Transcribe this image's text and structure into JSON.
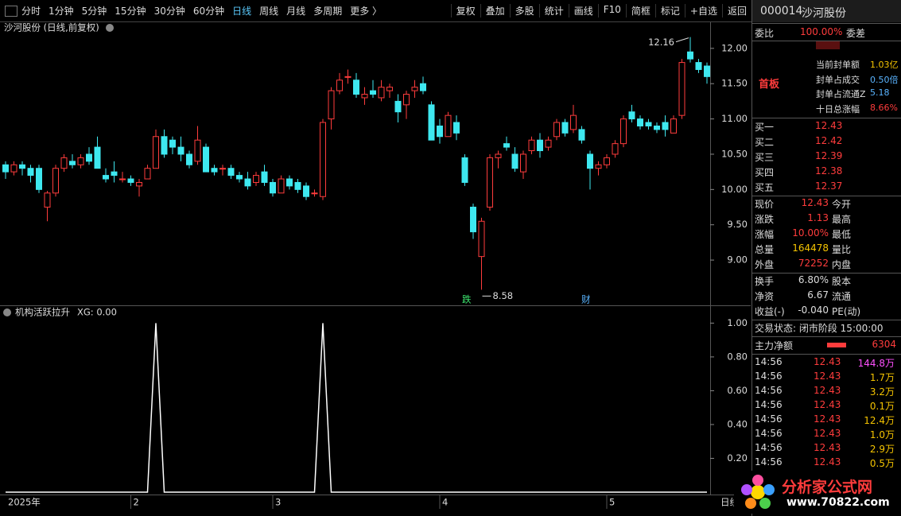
{
  "toolbar": {
    "left": [
      "分时",
      "1分钟",
      "5分钟",
      "15分钟",
      "30分钟",
      "60分钟",
      "日线",
      "周线",
      "月线",
      "多周期",
      "更多 〉"
    ],
    "active": 6,
    "right": [
      "复权",
      "叠加",
      "多股",
      "统计",
      "画线",
      "F10",
      "简框",
      "标记",
      "+自选",
      "返回"
    ]
  },
  "chart_data": [
    {
      "type": "candlestick",
      "title": "沙河股份 (日线,前复权)",
      "up_color": "#ff3c3c",
      "down_color": "#3ee8f0",
      "max_label": "12.16",
      "min_label": "8.58",
      "events": [
        "跌",
        "财"
      ],
      "categories": [
        "2025年",
        null,
        null,
        null,
        null,
        null,
        null,
        null,
        null,
        null,
        null,
        null,
        null,
        null,
        null,
        "2",
        null,
        null,
        null,
        null,
        null,
        null,
        null,
        null,
        null,
        null,
        null,
        null,
        null,
        null,
        null,
        null,
        "3",
        null,
        null,
        null,
        null,
        null,
        null,
        null,
        null,
        null,
        null,
        null,
        null,
        null,
        null,
        null,
        null,
        null,
        null,
        null,
        "4",
        null,
        null,
        null,
        null,
        null,
        null,
        null,
        null,
        null,
        null,
        null,
        null,
        null,
        null,
        null,
        null,
        null,
        null,
        null,
        "5",
        null,
        null,
        null,
        null,
        null,
        null,
        null,
        null,
        null,
        null,
        null,
        null
      ],
      "ohlc": [
        [
          10.35,
          10.4,
          10.15,
          10.25
        ],
        [
          10.25,
          10.4,
          10.2,
          10.35
        ],
        [
          10.35,
          10.4,
          10.2,
          10.3
        ],
        [
          10.3,
          10.35,
          10.1,
          10.2
        ],
        [
          10.3,
          10.35,
          9.95,
          10.0
        ],
        [
          9.75,
          9.98,
          9.55,
          9.95
        ],
        [
          9.95,
          10.35,
          9.9,
          10.3
        ],
        [
          10.3,
          10.5,
          10.25,
          10.45
        ],
        [
          10.4,
          10.5,
          10.3,
          10.35
        ],
        [
          10.35,
          10.5,
          10.3,
          10.45
        ],
        [
          10.5,
          10.6,
          10.35,
          10.4
        ],
        [
          10.6,
          10.75,
          10.3,
          10.3
        ],
        [
          10.2,
          10.3,
          10.1,
          10.15
        ],
        [
          10.25,
          10.4,
          10.1,
          10.2
        ],
        [
          10.15,
          10.25,
          10.1,
          10.15
        ],
        [
          10.15,
          10.2,
          10.05,
          10.1
        ],
        [
          10.05,
          10.15,
          9.9,
          10.1
        ],
        [
          10.15,
          10.35,
          10.15,
          10.3
        ],
        [
          10.3,
          10.85,
          10.3,
          10.75
        ],
        [
          10.75,
          10.85,
          10.45,
          10.5
        ],
        [
          10.7,
          10.75,
          10.5,
          10.6
        ],
        [
          10.6,
          10.75,
          10.4,
          10.5
        ],
        [
          10.5,
          10.55,
          10.3,
          10.35
        ],
        [
          10.4,
          10.9,
          10.35,
          10.7
        ],
        [
          10.6,
          10.65,
          10.25,
          10.25
        ],
        [
          10.3,
          10.35,
          10.2,
          10.25
        ],
        [
          10.3,
          10.35,
          10.2,
          10.3
        ],
        [
          10.3,
          10.35,
          10.15,
          10.2
        ],
        [
          10.2,
          10.25,
          10.1,
          10.15
        ],
        [
          10.15,
          10.25,
          10.0,
          10.05
        ],
        [
          10.1,
          10.25,
          10.05,
          10.2
        ],
        [
          10.25,
          10.35,
          10.05,
          10.1
        ],
        [
          10.1,
          10.15,
          9.9,
          9.95
        ],
        [
          9.95,
          10.2,
          9.95,
          10.15
        ],
        [
          10.15,
          10.2,
          10.0,
          10.05
        ],
        [
          10.1,
          10.15,
          9.95,
          10.0
        ],
        [
          10.05,
          10.1,
          9.85,
          9.9
        ],
        [
          9.95,
          10.0,
          9.9,
          9.95
        ],
        [
          9.9,
          11.0,
          9.85,
          10.95
        ],
        [
          11.0,
          11.45,
          10.85,
          11.4
        ],
        [
          11.4,
          11.65,
          11.35,
          11.55
        ],
        [
          11.6,
          11.7,
          11.5,
          11.6
        ],
        [
          11.55,
          11.65,
          11.3,
          11.35
        ],
        [
          11.3,
          11.45,
          11.2,
          11.35
        ],
        [
          11.4,
          11.55,
          11.3,
          11.35
        ],
        [
          11.3,
          11.55,
          11.25,
          11.45
        ],
        [
          11.4,
          11.5,
          11.3,
          11.45
        ],
        [
          11.25,
          11.35,
          10.95,
          11.1
        ],
        [
          11.2,
          11.4,
          11.0,
          11.35
        ],
        [
          11.4,
          11.55,
          11.3,
          11.45
        ],
        [
          11.5,
          11.6,
          11.35,
          11.4
        ],
        [
          11.2,
          11.25,
          10.7,
          10.7
        ],
        [
          10.9,
          11.0,
          10.65,
          10.75
        ],
        [
          10.75,
          11.1,
          10.75,
          11.05
        ],
        [
          10.95,
          11.05,
          10.7,
          10.8
        ],
        [
          10.45,
          10.5,
          10.05,
          10.1
        ],
        [
          9.75,
          9.8,
          9.3,
          9.4
        ],
        [
          9.05,
          9.6,
          8.58,
          9.55
        ],
        [
          9.75,
          10.5,
          9.7,
          10.45
        ],
        [
          10.45,
          10.55,
          10.3,
          10.5
        ],
        [
          10.65,
          10.75,
          10.55,
          10.6
        ],
        [
          10.5,
          10.6,
          10.25,
          10.3
        ],
        [
          10.25,
          10.55,
          10.15,
          10.5
        ],
        [
          10.55,
          10.75,
          10.5,
          10.7
        ],
        [
          10.7,
          10.8,
          10.45,
          10.55
        ],
        [
          10.6,
          10.75,
          10.55,
          10.7
        ],
        [
          10.75,
          11.0,
          10.7,
          10.95
        ],
        [
          10.95,
          11.0,
          10.75,
          10.8
        ],
        [
          10.85,
          11.2,
          10.8,
          11.05
        ],
        [
          10.85,
          10.9,
          10.65,
          10.7
        ],
        [
          10.5,
          10.55,
          10.0,
          10.3
        ],
        [
          10.3,
          10.4,
          10.2,
          10.35
        ],
        [
          10.35,
          10.5,
          10.3,
          10.45
        ],
        [
          10.5,
          10.7,
          10.45,
          10.65
        ],
        [
          10.65,
          11.05,
          10.6,
          11.0
        ],
        [
          11.1,
          11.2,
          10.95,
          11.0
        ],
        [
          11.0,
          11.05,
          10.85,
          10.9
        ],
        [
          10.95,
          11.0,
          10.85,
          10.9
        ],
        [
          10.9,
          10.95,
          10.8,
          10.85
        ],
        [
          10.95,
          11.05,
          10.75,
          10.85
        ],
        [
          10.8,
          11.05,
          10.8,
          11.0
        ],
        [
          11.05,
          11.85,
          11.0,
          11.8
        ],
        [
          11.95,
          12.16,
          11.8,
          11.85
        ],
        [
          11.8,
          11.85,
          11.65,
          11.7
        ],
        [
          11.75,
          11.8,
          11.5,
          11.6
        ]
      ],
      "ylim": [
        8.37,
        12.37
      ],
      "yticks": [
        {
          "value": 9,
          "label": "9.00"
        },
        {
          "value": 9.5,
          "label": "9.50"
        },
        {
          "value": 10,
          "label": "10.00"
        },
        {
          "value": 10.5,
          "label": "10.50"
        },
        {
          "value": 11,
          "label": "11.00"
        },
        {
          "value": 11.5,
          "label": "11.50"
        },
        {
          "value": 12,
          "label": "12.00"
        }
      ],
      "period_label": "日线"
    },
    {
      "type": "line",
      "title": "机构活跃拉升",
      "subtitle": "XG: 0.00",
      "series": [
        {
          "name": "XG",
          "color": "#ffffff",
          "values": [
            0,
            0,
            0,
            0,
            0,
            0,
            0,
            0,
            0,
            0,
            0,
            0,
            0,
            0,
            0,
            0,
            0,
            0,
            1,
            0,
            0,
            0,
            0,
            0,
            0,
            0,
            0,
            0,
            0,
            0,
            0,
            0,
            0,
            0,
            0,
            0,
            0,
            0,
            1,
            0,
            0,
            0,
            0,
            0,
            0,
            0,
            0,
            0,
            0,
            0,
            0,
            0,
            0,
            0,
            0,
            0,
            0,
            0,
            0,
            0,
            0,
            0,
            0,
            0,
            0,
            0,
            0,
            0,
            0,
            0,
            0,
            0,
            0,
            0,
            0,
            0,
            0,
            0,
            0,
            0,
            0,
            0,
            0,
            0,
            0
          ]
        }
      ],
      "ylim": [
        0,
        1.03
      ],
      "yticks": [
        {
          "value": 0.2,
          "label": "0.20"
        },
        {
          "value": 0.4,
          "label": "0.40"
        },
        {
          "value": 0.6,
          "label": "0.60"
        },
        {
          "value": 0.8,
          "label": "0.80"
        },
        {
          "value": 1,
          "label": "1.00"
        }
      ]
    }
  ],
  "quote": {
    "code": "000014",
    "name": "沙河股份",
    "webi": [
      "委比",
      "100.00%",
      "委差"
    ],
    "seal_tag": "首板",
    "seal": [
      [
        "当前封单额",
        "1.03亿"
      ],
      [
        "封单占成交",
        "0.50倍"
      ],
      [
        "封单占流通Z",
        "5.18"
      ],
      [
        "十日总涨幅",
        "8.66%"
      ]
    ],
    "bids": [
      [
        "买一",
        "12.43"
      ],
      [
        "买二",
        "12.42"
      ],
      [
        "买三",
        "12.39"
      ],
      [
        "买四",
        "12.38"
      ],
      [
        "买五",
        "12.37"
      ]
    ],
    "stats": [
      [
        "现价",
        "12.43",
        "今开"
      ],
      [
        "涨跌",
        "1.13",
        "最高"
      ],
      [
        "涨幅",
        "10.00%",
        "最低"
      ],
      [
        "总量",
        "164478",
        "量比"
      ],
      [
        "外盘",
        "72252",
        "内盘"
      ]
    ],
    "stats2": [
      [
        "换手",
        "6.80%",
        "股本"
      ],
      [
        "净资",
        "6.67",
        "流通"
      ],
      [
        "收益(-)",
        "-0.040",
        "PE(动)"
      ]
    ],
    "status": "交易状态: 闭市阶段 15:00:00",
    "flow": [
      "主力净额",
      "6304"
    ],
    "ticks": [
      [
        "14:56",
        "12.43",
        "144.8万"
      ],
      [
        "14:56",
        "12.43",
        "1.7万"
      ],
      [
        "14:56",
        "12.43",
        "3.2万"
      ],
      [
        "14:56",
        "12.43",
        "0.1万"
      ],
      [
        "14:56",
        "12.43",
        "12.4万"
      ],
      [
        "14:56",
        "12.43",
        "1.0万"
      ],
      [
        "14:56",
        "12.43",
        "2.9万"
      ],
      [
        "14:56",
        "12.43",
        "0.5万"
      ]
    ]
  },
  "watermark": {
    "title": "分析家公式网",
    "url": "www.70822.com"
  }
}
